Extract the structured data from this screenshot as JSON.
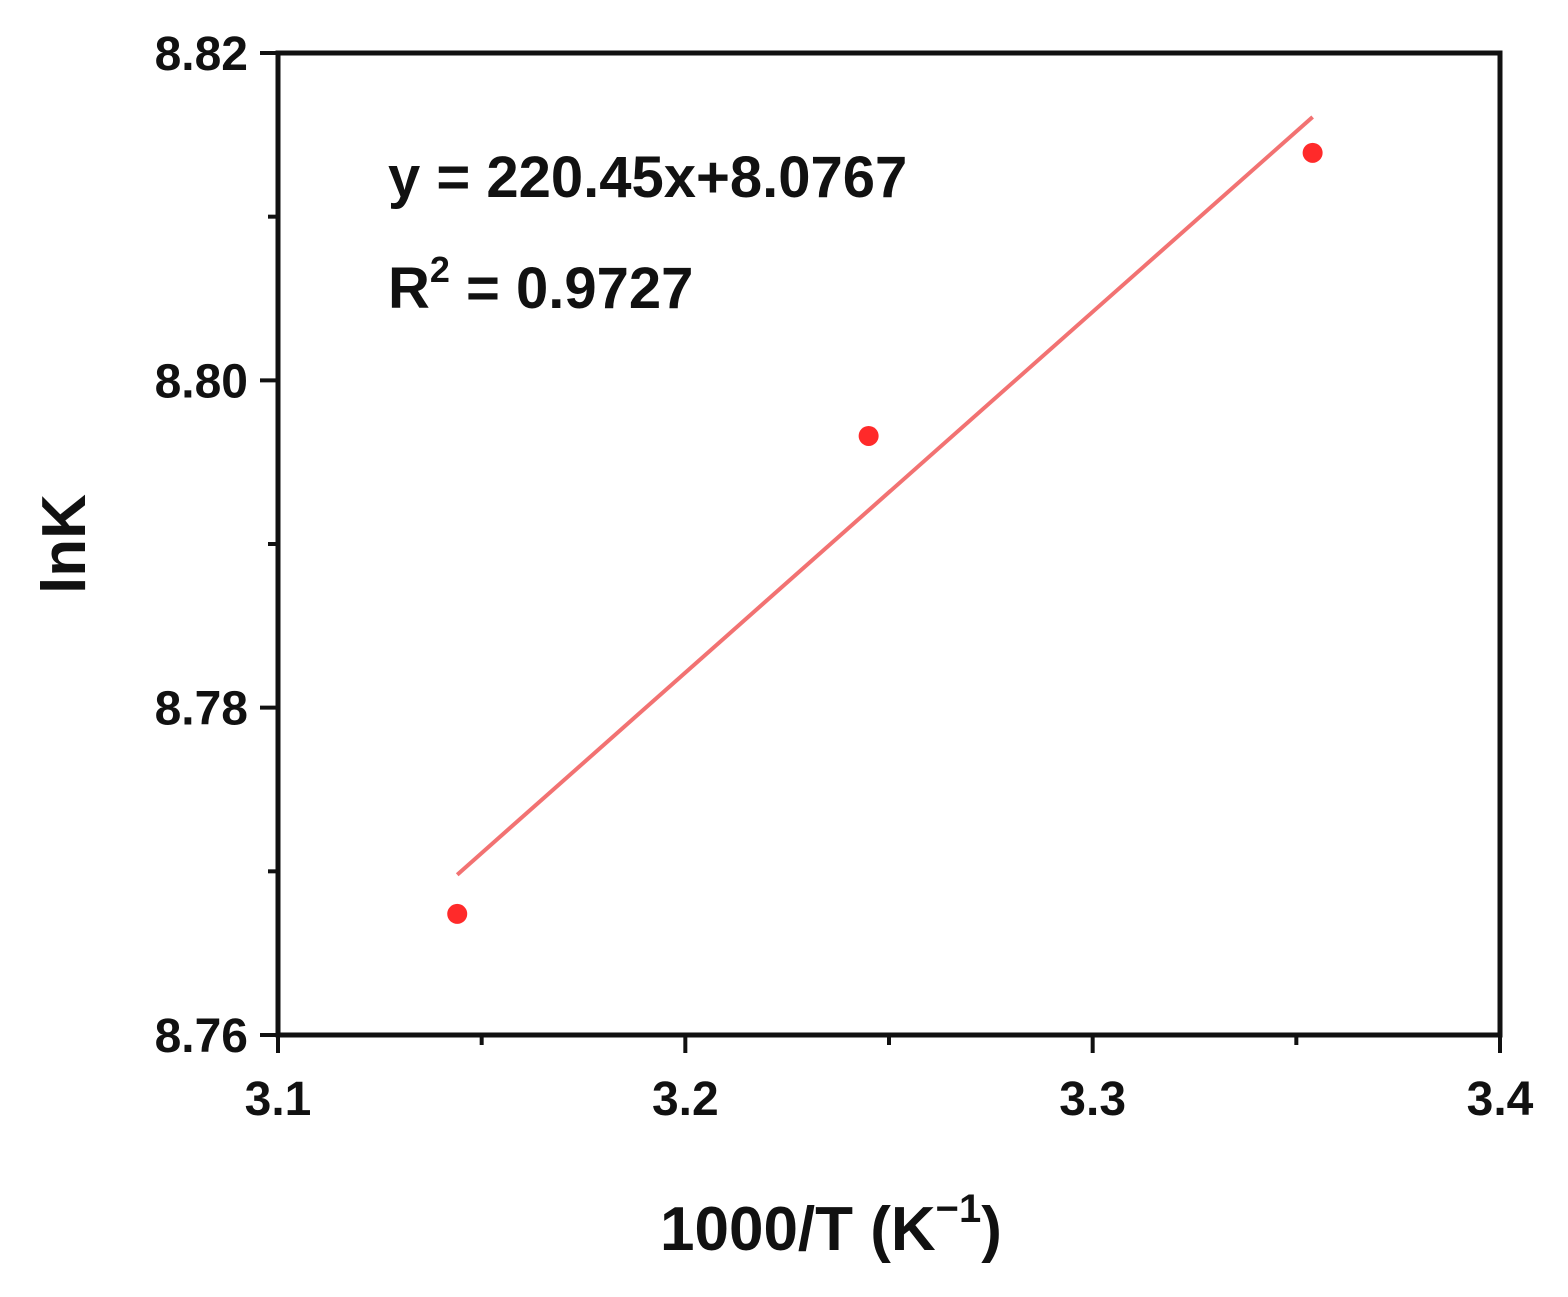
{
  "chart_data": {
    "type": "scatter",
    "title": "",
    "xlabel": "1000/T (K",
    "xlabel_sup": "−1",
    "xlabel_suffix": ")",
    "ylabel": "lnK",
    "xlim": [
      3.1,
      3.4
    ],
    "ylim": [
      8.76,
      8.82
    ],
    "x_ticks": [
      "3.1",
      "3.2",
      "3.3",
      "3.4"
    ],
    "y_ticks": [
      "8.76",
      "8.78",
      "8.80",
      "8.82"
    ],
    "series": [
      {
        "points": [
          {
            "x": 3.144,
            "y": 8.7674
          },
          {
            "x": 3.245,
            "y": 8.7966
          },
          {
            "x": 3.354,
            "y": 8.8139
          }
        ]
      }
    ],
    "fit": {
      "slope": 0.22045,
      "intercept": 8.0767,
      "x_range": [
        3.144,
        3.354
      ]
    },
    "annotations": {
      "equation": "y = 220.45x+8.0767",
      "r2_prefix": "R",
      "r2_sup": "2",
      "r2_suffix": " = 0.9727"
    },
    "grid": false,
    "colors": {
      "points": "#ff2a2a",
      "fit_line": "#f27272",
      "axes": "#111111"
    }
  }
}
